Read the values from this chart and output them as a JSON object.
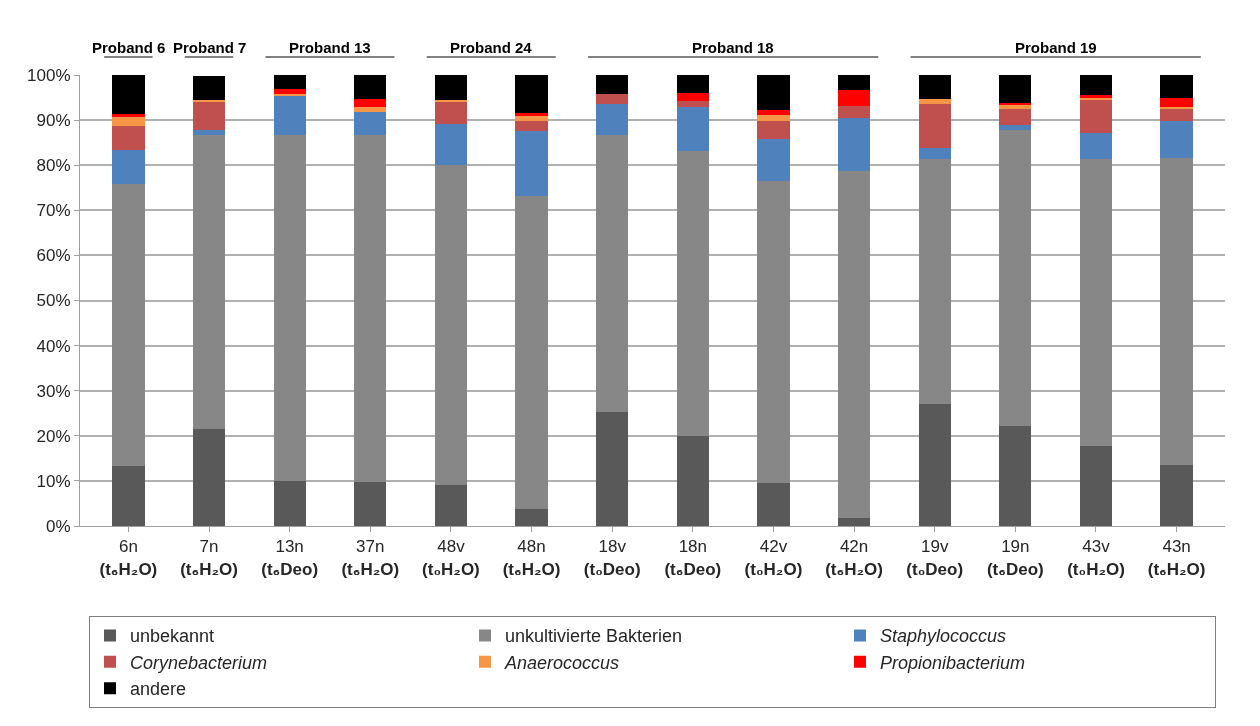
{
  "chart_data": {
    "type": "bar",
    "stacked": true,
    "categories": [
      "6n\n(t₆H₂O)",
      "7n\n(t₆H₂O)",
      "13n\n(t₆Deo)",
      "37n\n(t₆H₂O)",
      "48v\n(t₀H₂O)",
      "48n\n(t₆H₂O)",
      "18v\n(t₀Deo)",
      "18n\n(t₆Deo)",
      "42v\n(t₀H₂O)",
      "42n\n(t₆H₂O)",
      "19v\n(t₀Deo)",
      "19n\n(t₆Deo)",
      "43v\n(t₀H₂O)",
      "43n\n(t₆H₂O)"
    ],
    "series": [
      {
        "name": "unbekannt",
        "color": "#595959",
        "values": [
          13.3,
          21.4,
          9.9,
          9.8,
          9.1,
          3.7,
          25.2,
          20.0,
          9.6,
          1.8,
          27.0,
          22.1,
          17.7,
          13.6
        ]
      },
      {
        "name": "unkultivierte Bakterien",
        "color": "#878787",
        "values": [
          62.6,
          65.4,
          76.9,
          77.0,
          70.9,
          69.5,
          61.6,
          63.1,
          66.9,
          76.9,
          54.3,
          65.7,
          63.7,
          68.1
        ]
      },
      {
        "name": "Staphylococcus",
        "color": "#4f81bd",
        "values": [
          7.4,
          1.0,
          8.7,
          5.0,
          9.2,
          14.3,
          6.8,
          9.7,
          9.2,
          11.7,
          2.5,
          1.1,
          5.7,
          8.1
        ]
      },
      {
        "name": "Corynebacterium",
        "color": "#c0504d",
        "values": [
          5.5,
          6.4,
          0,
          0,
          5.0,
          2.3,
          2.1,
          1.5,
          4.1,
          2.8,
          9.7,
          3.6,
          7.4,
          2.8
        ]
      },
      {
        "name": "Anaerococcus",
        "color": "#f79646",
        "values": [
          1.8,
          0.3,
          0.2,
          1.2,
          0.3,
          1.3,
          0,
          0,
          1.4,
          0,
          1.1,
          0.8,
          0.4,
          0.4
        ]
      },
      {
        "name": "Propionibacterium",
        "color": "#ff0000",
        "values": [
          0.7,
          null,
          1.3,
          1.6,
          0,
          0.4,
          0,
          1.7,
          1.1,
          3.4,
          0,
          0.5,
          0.6,
          2.0
        ]
      },
      {
        "name": "andere",
        "color": "#000000",
        "values": [
          8.7,
          5.3,
          3.0,
          5.4,
          5.5,
          8.5,
          4.3,
          4.0,
          7.7,
          3.4,
          5.4,
          6.2,
          4.5,
          5.0
        ]
      }
    ],
    "ylim": [
      0,
      100
    ],
    "yticks": [
      {
        "value": 0,
        "label": "0%"
      },
      {
        "value": 10,
        "label": "10%"
      },
      {
        "value": 20,
        "label": "20%"
      },
      {
        "value": 30,
        "label": "30%"
      },
      {
        "value": 40,
        "label": "40%"
      },
      {
        "value": 50,
        "label": "50%"
      },
      {
        "value": 60,
        "label": "60%"
      },
      {
        "value": 70,
        "label": "70%"
      },
      {
        "value": 80,
        "label": "80%"
      },
      {
        "value": 90,
        "label": "90%"
      },
      {
        "value": 100,
        "label": "100%"
      }
    ],
    "grid": "y",
    "legend": "bottom",
    "annotations": [
      "Proband 6",
      "Proband 7",
      "Proband 13",
      "Proband 24",
      "Proband 18",
      "Proband 19"
    ]
  }
}
